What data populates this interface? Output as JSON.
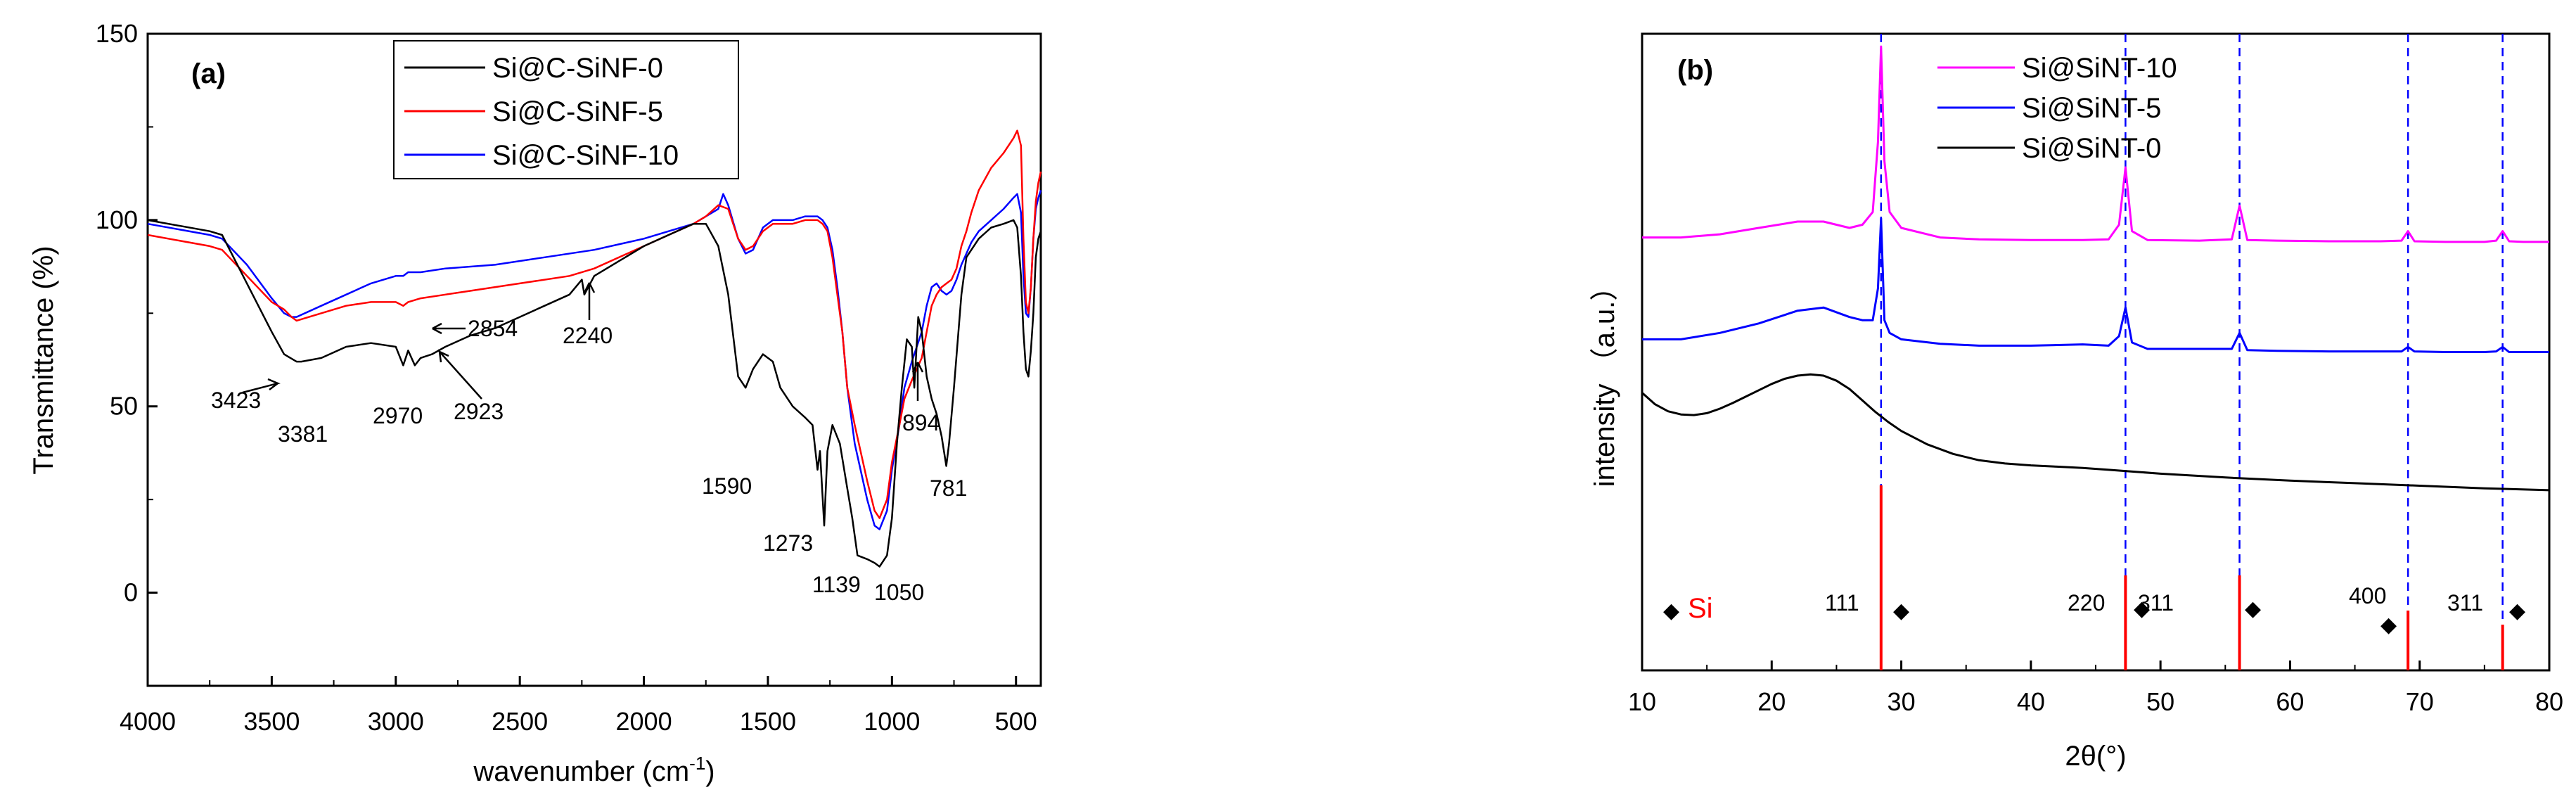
{
  "chart_data": [
    {
      "panel": "(a)",
      "type": "line",
      "xlabel": "wavenumber (cm",
      "xlabel_sup": "-1",
      "xlabel_tail": ")",
      "ylabel": "Transmittance (%)",
      "xlim": [
        4000,
        400
      ],
      "ylim": [
        -25,
        150
      ],
      "xticks": [
        4000,
        3500,
        3000,
        2500,
        2000,
        1500,
        1000,
        500
      ],
      "yticks": [
        0,
        50,
        100,
        150
      ],
      "legend_position": "top-center",
      "series": [
        {
          "name": "Si@C-SiNF-0",
          "color": "#000000",
          "x": [
            4000,
            3750,
            3700,
            3600,
            3500,
            3450,
            3400,
            3381,
            3300,
            3200,
            3100,
            3000,
            2970,
            2950,
            2923,
            2900,
            2854,
            2800,
            2700,
            2600,
            2500,
            2400,
            2300,
            2250,
            2240,
            2200,
            2100,
            2000,
            1900,
            1800,
            1750,
            1700,
            1660,
            1620,
            1590,
            1560,
            1520,
            1480,
            1450,
            1400,
            1350,
            1320,
            1300,
            1290,
            1273,
            1260,
            1240,
            1210,
            1180,
            1160,
            1139,
            1100,
            1070,
            1050,
            1020,
            1000,
            980,
            960,
            940,
            920,
            910,
            894,
            880,
            860,
            840,
            820,
            800,
            781,
            770,
            750,
            720,
            700,
            650,
            600,
            550,
            510,
            495,
            480,
            470,
            460,
            450,
            440,
            430,
            420,
            410,
            400
          ],
          "y": [
            100,
            97,
            96,
            83,
            70,
            64,
            62,
            62,
            63,
            66,
            67,
            66,
            61,
            65,
            61,
            63,
            64,
            66,
            69,
            71,
            74,
            77,
            80,
            84,
            80,
            85,
            89,
            93,
            96,
            99,
            99,
            93,
            80,
            58,
            55,
            60,
            64,
            62,
            55,
            50,
            47,
            45,
            33,
            38,
            18,
            38,
            45,
            40,
            28,
            20,
            10,
            9,
            8,
            7,
            10,
            20,
            40,
            55,
            68,
            66,
            55,
            74,
            70,
            58,
            52,
            48,
            42,
            34,
            40,
            55,
            80,
            90,
            95,
            98,
            99,
            100,
            98,
            85,
            70,
            60,
            58,
            65,
            75,
            90,
            95,
            97
          ]
        },
        {
          "name": "Si@C-SiNF-5",
          "color": "#ff0000",
          "x": [
            4000,
            3750,
            3700,
            3600,
            3500,
            3450,
            3420,
            3400,
            3300,
            3200,
            3100,
            3000,
            2970,
            2950,
            2900,
            2800,
            2700,
            2500,
            2300,
            2200,
            2000,
            1900,
            1800,
            1750,
            1700,
            1660,
            1620,
            1590,
            1560,
            1520,
            1480,
            1400,
            1350,
            1300,
            1280,
            1260,
            1240,
            1220,
            1200,
            1180,
            1150,
            1100,
            1070,
            1050,
            1020,
            1000,
            970,
            950,
            920,
            900,
            880,
            860,
            840,
            820,
            800,
            780,
            760,
            740,
            720,
            700,
            680,
            650,
            600,
            550,
            510,
            495,
            480,
            470,
            460,
            450,
            440,
            430,
            420,
            410,
            400
          ],
          "y": [
            96,
            93,
            92,
            85,
            78,
            76,
            74,
            73,
            75,
            77,
            78,
            78,
            77,
            78,
            79,
            80,
            81,
            83,
            85,
            87,
            93,
            96,
            99,
            101,
            104,
            103,
            95,
            92,
            93,
            97,
            99,
            99,
            100,
            100,
            99,
            97,
            90,
            80,
            70,
            55,
            45,
            30,
            22,
            20,
            25,
            35,
            45,
            52,
            57,
            60,
            63,
            70,
            77,
            80,
            82,
            83,
            84,
            87,
            93,
            97,
            102,
            108,
            114,
            118,
            122,
            124,
            120,
            95,
            78,
            75,
            82,
            95,
            105,
            110,
            113
          ]
        },
        {
          "name": "Si@C-SiNF-10",
          "color": "#0000ff",
          "x": [
            4000,
            3750,
            3700,
            3600,
            3500,
            3450,
            3420,
            3400,
            3300,
            3200,
            3100,
            3000,
            2970,
            2950,
            2900,
            2800,
            2600,
            2400,
            2200,
            2000,
            1900,
            1800,
            1750,
            1700,
            1680,
            1660,
            1620,
            1590,
            1560,
            1520,
            1480,
            1400,
            1350,
            1300,
            1280,
            1260,
            1240,
            1220,
            1200,
            1180,
            1150,
            1100,
            1070,
            1050,
            1020,
            1000,
            970,
            950,
            920,
            900,
            880,
            860,
            840,
            820,
            800,
            780,
            760,
            740,
            720,
            700,
            680,
            650,
            600,
            550,
            510,
            495,
            480,
            470,
            460,
            450,
            440,
            430,
            420,
            410,
            400
          ],
          "y": [
            99,
            96,
            95,
            88,
            79,
            75,
            74,
            74,
            77,
            80,
            83,
            85,
            85,
            86,
            86,
            87,
            88,
            90,
            92,
            95,
            97,
            99,
            101,
            103,
            107,
            104,
            95,
            91,
            92,
            98,
            100,
            100,
            101,
            101,
            100,
            98,
            92,
            82,
            70,
            55,
            40,
            25,
            18,
            17,
            22,
            33,
            45,
            55,
            62,
            66,
            70,
            77,
            82,
            83,
            81,
            80,
            81,
            84,
            88,
            91,
            94,
            97,
            100,
            103,
            106,
            107,
            102,
            85,
            75,
            74,
            82,
            95,
            103,
            106,
            108
          ]
        }
      ],
      "annotations": [
        "3423",
        "3381",
        "2970",
        "2923",
        "2854",
        "2240",
        "1590",
        "1273",
        "1139",
        "1050",
        "894",
        "781"
      ]
    },
    {
      "panel": "(b)",
      "type": "line",
      "xlabel": "2θ(°)",
      "ylabel": "intensity （a.u.）",
      "xlim": [
        10,
        80
      ],
      "ylim": [
        0,
        100
      ],
      "xticks": [
        10,
        20,
        30,
        40,
        50,
        60,
        70,
        80
      ],
      "legend_position": "top-center",
      "series": [
        {
          "name": "Si@SiNT-10",
          "color": "#ff00ff",
          "x": [
            10,
            13,
            16,
            19,
            22,
            24,
            26,
            27,
            27.8,
            28.2,
            28.44,
            28.7,
            29.1,
            30,
            33,
            36,
            40,
            44,
            46,
            46.8,
            47.3,
            47.8,
            49,
            53,
            55.5,
            56.1,
            56.7,
            59,
            63,
            67,
            68.6,
            69.1,
            69.6,
            72,
            75,
            75.9,
            76.4,
            76.9,
            78,
            80
          ],
          "y": [
            68,
            68,
            68.5,
            69.5,
            70.5,
            70.5,
            69.5,
            70,
            72,
            83,
            98,
            80,
            72,
            69.5,
            68,
            67.7,
            67.6,
            67.6,
            67.7,
            70,
            79,
            69,
            67.6,
            67.5,
            67.7,
            73,
            67.6,
            67.5,
            67.4,
            67.4,
            67.5,
            69,
            67.4,
            67.3,
            67.3,
            67.5,
            69,
            67.4,
            67.3,
            67.3
          ]
        },
        {
          "name": "Si@SiNT-5",
          "color": "#0000ff",
          "x": [
            10,
            13,
            16,
            19,
            22,
            24,
            26,
            27,
            27.8,
            28.2,
            28.44,
            28.7,
            29.1,
            30,
            33,
            36,
            40,
            44,
            46,
            46.8,
            47.3,
            47.8,
            49,
            53,
            55.5,
            56.1,
            56.7,
            59,
            63,
            67,
            68.6,
            69.1,
            69.6,
            72,
            75,
            75.9,
            76.4,
            76.9,
            78,
            80
          ],
          "y": [
            52,
            52,
            53,
            54.5,
            56.5,
            57,
            55.5,
            55,
            55,
            60,
            71,
            55,
            53,
            52,
            51.3,
            51,
            51,
            51.2,
            51,
            52.5,
            57,
            51.5,
            50.5,
            50.5,
            50.5,
            53,
            50.3,
            50.2,
            50.1,
            50.1,
            50.1,
            50.8,
            50.1,
            50,
            50,
            50.1,
            50.8,
            50,
            50,
            50
          ]
        },
        {
          "name": "Si@SiNT-0",
          "color": "#000000",
          "x": [
            10,
            11,
            12,
            13,
            14,
            15,
            16,
            17,
            18,
            19,
            20,
            21,
            22,
            23,
            24,
            25,
            26,
            27,
            28,
            29,
            30,
            32,
            34,
            36,
            38,
            40,
            42,
            44,
            46,
            48,
            50,
            55,
            60,
            65,
            70,
            75,
            80
          ],
          "y": [
            43.6,
            41.8,
            40.7,
            40.2,
            40.1,
            40.4,
            41.1,
            42,
            43,
            44,
            45,
            45.8,
            46.3,
            46.5,
            46.3,
            45.5,
            44.2,
            42.4,
            40.6,
            39,
            37.6,
            35.5,
            34,
            33,
            32.5,
            32.2,
            32,
            31.8,
            31.5,
            31.2,
            30.9,
            30.3,
            29.8,
            29.4,
            29,
            28.6,
            28.3
          ]
        }
      ],
      "reference_label": "Si",
      "reference_peaks": [
        {
          "hkl": "111",
          "x": 28.44
        },
        {
          "hkl": "220",
          "x": 47.3
        },
        {
          "hkl": "311",
          "x": 56.1
        },
        {
          "hkl": "400",
          "x": 69.1
        },
        {
          "hkl": "311",
          "x": 76.4
        }
      ]
    }
  ],
  "panel_a": {
    "label": "(a)"
  },
  "panel_b": {
    "label": "(b)",
    "ref_marker": "◆"
  }
}
